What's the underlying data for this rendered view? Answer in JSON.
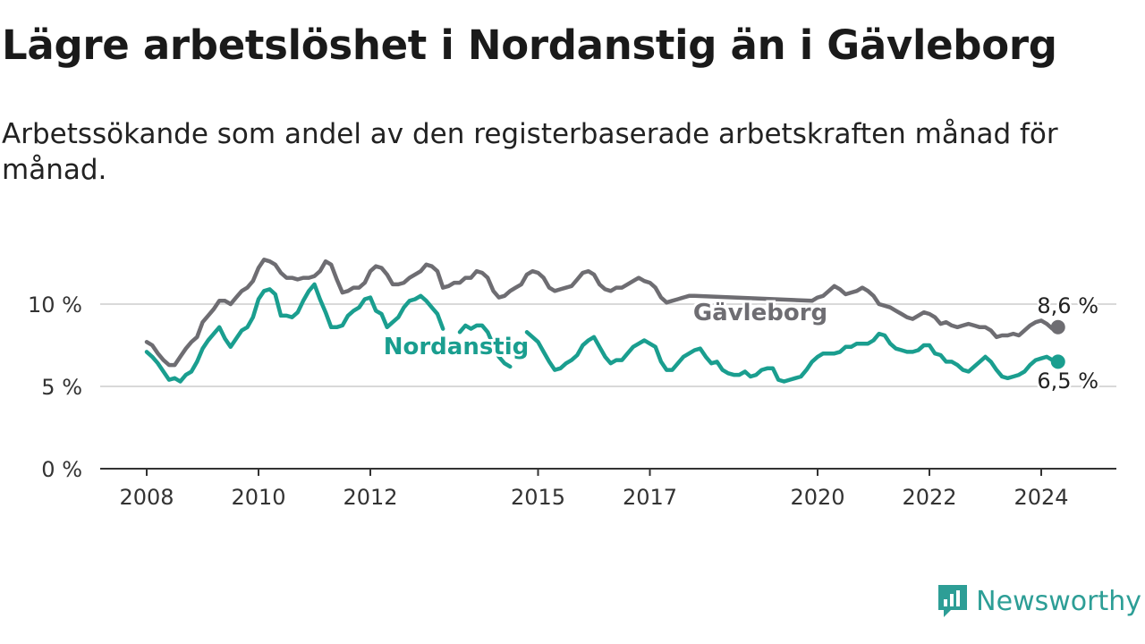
{
  "title": "Lägre arbetslöshet i Nordanstig än i Gävleborg",
  "subtitle": "Arbetssökande som andel av den registerbaserade arbetskraften månad för månad.",
  "brand": "Newsworthy",
  "colors": {
    "gavleborg": "#6e6d72",
    "nordanstig": "#1a9e8f",
    "grid": "#d9d9d9",
    "axis": "#333333",
    "brand": "#2d9e96"
  },
  "chart_data": {
    "type": "line",
    "title": "Lägre arbetslöshet i Nordanstig än i Gävleborg",
    "subtitle": "Arbetssökande som andel av den registerbaserade arbetskraften månad för månad.",
    "x_ticks": [
      2008,
      2010,
      2012,
      2015,
      2017,
      2020,
      2022,
      2024
    ],
    "y_ticks": [
      0,
      5,
      10
    ],
    "y_tick_labels": [
      "0 %",
      "5 %",
      "10 %"
    ],
    "ylim": [
      0,
      14
    ],
    "xlim": [
      2007.2,
      2025.4
    ],
    "series": [
      {
        "name": "Gävleborg",
        "end_label": "8,6 %",
        "points": [
          [
            2008.0,
            7.7
          ],
          [
            2008.1,
            7.5
          ],
          [
            2008.2,
            7.0
          ],
          [
            2008.3,
            6.6
          ],
          [
            2008.4,
            6.3
          ],
          [
            2008.5,
            6.3
          ],
          [
            2008.6,
            6.8
          ],
          [
            2008.7,
            7.3
          ],
          [
            2008.8,
            7.7
          ],
          [
            2008.9,
            8.0
          ],
          [
            2009.0,
            8.9
          ],
          [
            2009.1,
            9.3
          ],
          [
            2009.2,
            9.7
          ],
          [
            2009.3,
            10.2
          ],
          [
            2009.4,
            10.2
          ],
          [
            2009.5,
            10.0
          ],
          [
            2009.6,
            10.4
          ],
          [
            2009.7,
            10.8
          ],
          [
            2009.8,
            11.0
          ],
          [
            2009.9,
            11.4
          ],
          [
            2010.0,
            12.2
          ],
          [
            2010.1,
            12.7
          ],
          [
            2010.2,
            12.6
          ],
          [
            2010.3,
            12.4
          ],
          [
            2010.4,
            11.9
          ],
          [
            2010.5,
            11.6
          ],
          [
            2010.6,
            11.6
          ],
          [
            2010.7,
            11.5
          ],
          [
            2010.8,
            11.6
          ],
          [
            2010.9,
            11.6
          ],
          [
            2011.0,
            11.7
          ],
          [
            2011.1,
            12.0
          ],
          [
            2011.2,
            12.6
          ],
          [
            2011.3,
            12.4
          ],
          [
            2011.4,
            11.5
          ],
          [
            2011.5,
            10.7
          ],
          [
            2011.6,
            10.8
          ],
          [
            2011.7,
            11.0
          ],
          [
            2011.8,
            11.0
          ],
          [
            2011.9,
            11.3
          ],
          [
            2012.0,
            12.0
          ],
          [
            2012.1,
            12.3
          ],
          [
            2012.2,
            12.2
          ],
          [
            2012.3,
            11.8
          ],
          [
            2012.4,
            11.2
          ],
          [
            2012.5,
            11.2
          ],
          [
            2012.6,
            11.3
          ],
          [
            2012.7,
            11.6
          ],
          [
            2012.8,
            11.8
          ],
          [
            2012.9,
            12.0
          ],
          [
            2013.0,
            12.4
          ],
          [
            2013.1,
            12.3
          ],
          [
            2013.2,
            12.0
          ],
          [
            2013.3,
            11.0
          ],
          [
            2013.4,
            11.1
          ],
          [
            2013.5,
            11.3
          ],
          [
            2013.6,
            11.3
          ],
          [
            2013.7,
            11.6
          ],
          [
            2013.8,
            11.6
          ],
          [
            2013.9,
            12.0
          ],
          [
            2014.0,
            11.9
          ],
          [
            2014.1,
            11.6
          ],
          [
            2014.2,
            10.8
          ],
          [
            2014.3,
            10.4
          ],
          [
            2014.4,
            10.5
          ],
          [
            2014.5,
            10.8
          ],
          [
            2014.6,
            11.0
          ],
          [
            2014.7,
            11.2
          ],
          [
            2014.8,
            11.8
          ],
          [
            2014.9,
            12.0
          ],
          [
            2015.0,
            11.9
          ],
          [
            2015.1,
            11.6
          ],
          [
            2015.2,
            11.0
          ],
          [
            2015.3,
            10.8
          ],
          [
            2015.4,
            10.9
          ],
          [
            2015.5,
            11.0
          ],
          [
            2015.6,
            11.1
          ],
          [
            2015.7,
            11.5
          ],
          [
            2015.8,
            11.9
          ],
          [
            2015.9,
            12.0
          ],
          [
            2016.0,
            11.8
          ],
          [
            2016.1,
            11.2
          ],
          [
            2016.2,
            10.9
          ],
          [
            2016.3,
            10.8
          ],
          [
            2016.4,
            11.0
          ],
          [
            2016.5,
            11.0
          ],
          [
            2016.6,
            11.2
          ],
          [
            2016.7,
            11.4
          ],
          [
            2016.8,
            11.6
          ],
          [
            2016.9,
            11.4
          ],
          [
            2017.0,
            11.3
          ],
          [
            2017.1,
            11.0
          ],
          [
            2017.2,
            10.4
          ],
          [
            2017.3,
            10.1
          ],
          [
            2017.4,
            10.2
          ],
          [
            2017.5,
            10.3
          ],
          [
            2017.6,
            10.4
          ],
          [
            2017.7,
            10.5
          ],
          [
            2017.8,
            10.5
          ],
          [
            2019.9,
            10.2
          ],
          [
            2020.0,
            10.4
          ],
          [
            2020.1,
            10.5
          ],
          [
            2020.2,
            10.8
          ],
          [
            2020.3,
            11.1
          ],
          [
            2020.4,
            10.9
          ],
          [
            2020.5,
            10.6
          ],
          [
            2020.6,
            10.7
          ],
          [
            2020.7,
            10.8
          ],
          [
            2020.8,
            11.0
          ],
          [
            2020.9,
            10.8
          ],
          [
            2021.0,
            10.5
          ],
          [
            2021.1,
            10.0
          ],
          [
            2021.2,
            9.9
          ],
          [
            2021.3,
            9.8
          ],
          [
            2021.4,
            9.6
          ],
          [
            2021.5,
            9.4
          ],
          [
            2021.6,
            9.2
          ],
          [
            2021.7,
            9.1
          ],
          [
            2021.8,
            9.3
          ],
          [
            2021.9,
            9.5
          ],
          [
            2022.0,
            9.4
          ],
          [
            2022.1,
            9.2
          ],
          [
            2022.2,
            8.8
          ],
          [
            2022.3,
            8.9
          ],
          [
            2022.4,
            8.7
          ],
          [
            2022.5,
            8.6
          ],
          [
            2022.6,
            8.7
          ],
          [
            2022.7,
            8.8
          ],
          [
            2022.8,
            8.7
          ],
          [
            2022.9,
            8.6
          ],
          [
            2023.0,
            8.6
          ],
          [
            2023.1,
            8.4
          ],
          [
            2023.2,
            8.0
          ],
          [
            2023.3,
            8.1
          ],
          [
            2023.4,
            8.1
          ],
          [
            2023.5,
            8.2
          ],
          [
            2023.6,
            8.1
          ],
          [
            2023.7,
            8.4
          ],
          [
            2023.8,
            8.7
          ],
          [
            2023.9,
            8.9
          ],
          [
            2024.0,
            9.0
          ],
          [
            2024.1,
            8.8
          ],
          [
            2024.2,
            8.5
          ],
          [
            2024.3,
            8.6
          ]
        ]
      },
      {
        "name": "Nordanstig",
        "end_label": "6,5 %",
        "points": [
          [
            2008.0,
            7.1
          ],
          [
            2008.1,
            6.8
          ],
          [
            2008.2,
            6.4
          ],
          [
            2008.3,
            5.9
          ],
          [
            2008.4,
            5.4
          ],
          [
            2008.5,
            5.5
          ],
          [
            2008.6,
            5.3
          ],
          [
            2008.7,
            5.7
          ],
          [
            2008.8,
            5.9
          ],
          [
            2008.9,
            6.5
          ],
          [
            2009.0,
            7.3
          ],
          [
            2009.1,
            7.8
          ],
          [
            2009.2,
            8.2
          ],
          [
            2009.3,
            8.6
          ],
          [
            2009.4,
            7.9
          ],
          [
            2009.5,
            7.4
          ],
          [
            2009.6,
            7.9
          ],
          [
            2009.7,
            8.4
          ],
          [
            2009.8,
            8.6
          ],
          [
            2009.9,
            9.2
          ],
          [
            2010.0,
            10.3
          ],
          [
            2010.1,
            10.8
          ],
          [
            2010.2,
            10.9
          ],
          [
            2010.3,
            10.6
          ],
          [
            2010.4,
            9.3
          ],
          [
            2010.5,
            9.3
          ],
          [
            2010.6,
            9.2
          ],
          [
            2010.7,
            9.5
          ],
          [
            2010.8,
            10.2
          ],
          [
            2010.9,
            10.8
          ],
          [
            2011.0,
            11.2
          ],
          [
            2011.1,
            10.3
          ],
          [
            2011.2,
            9.5
          ],
          [
            2011.3,
            8.6
          ],
          [
            2011.4,
            8.6
          ],
          [
            2011.5,
            8.7
          ],
          [
            2011.6,
            9.3
          ],
          [
            2011.7,
            9.6
          ],
          [
            2011.8,
            9.8
          ],
          [
            2011.9,
            10.3
          ],
          [
            2012.0,
            10.4
          ],
          [
            2012.1,
            9.6
          ],
          [
            2012.2,
            9.4
          ],
          [
            2012.3,
            8.6
          ],
          [
            2012.4,
            8.9
          ],
          [
            2012.5,
            9.2
          ],
          [
            2012.6,
            9.8
          ],
          [
            2012.7,
            10.2
          ],
          [
            2012.8,
            10.3
          ],
          [
            2012.9,
            10.5
          ],
          [
            2013.0,
            10.2
          ],
          [
            2013.1,
            9.8
          ],
          [
            2013.2,
            9.4
          ],
          [
            2013.3,
            8.5
          ],
          [
            null,
            null
          ],
          [
            2013.6,
            8.3
          ],
          [
            2013.7,
            8.7
          ],
          [
            2013.8,
            8.5
          ],
          [
            2013.9,
            8.7
          ],
          [
            2014.0,
            8.7
          ],
          [
            2014.1,
            8.3
          ],
          [
            2014.2,
            7.5
          ],
          [
            2014.3,
            6.8
          ],
          [
            2014.4,
            6.4
          ],
          [
            2014.5,
            6.2
          ],
          [
            null,
            null
          ],
          [
            2014.8,
            8.3
          ],
          [
            2014.9,
            8.0
          ],
          [
            2015.0,
            7.7
          ],
          [
            2015.1,
            7.1
          ],
          [
            2015.2,
            6.5
          ],
          [
            2015.3,
            6.0
          ],
          [
            2015.4,
            6.1
          ],
          [
            2015.5,
            6.4
          ],
          [
            2015.6,
            6.6
          ],
          [
            2015.7,
            6.9
          ],
          [
            2015.8,
            7.5
          ],
          [
            2015.9,
            7.8
          ],
          [
            2016.0,
            8.0
          ],
          [
            2016.1,
            7.4
          ],
          [
            2016.2,
            6.8
          ],
          [
            2016.3,
            6.4
          ],
          [
            2016.4,
            6.6
          ],
          [
            2016.5,
            6.6
          ],
          [
            2016.6,
            7.0
          ],
          [
            2016.7,
            7.4
          ],
          [
            2016.8,
            7.6
          ],
          [
            2016.9,
            7.8
          ],
          [
            2017.0,
            7.6
          ],
          [
            2017.1,
            7.4
          ],
          [
            2017.2,
            6.5
          ],
          [
            2017.3,
            6.0
          ],
          [
            2017.4,
            6.0
          ],
          [
            2017.5,
            6.4
          ],
          [
            2017.6,
            6.8
          ],
          [
            2017.7,
            7.0
          ],
          [
            2017.8,
            7.2
          ],
          [
            2017.9,
            7.3
          ],
          [
            2018.0,
            6.8
          ],
          [
            2018.1,
            6.4
          ],
          [
            2018.2,
            6.5
          ],
          [
            2018.3,
            6.0
          ],
          [
            2018.4,
            5.8
          ],
          [
            2018.5,
            5.7
          ],
          [
            2018.6,
            5.7
          ],
          [
            2018.7,
            5.9
          ],
          [
            2018.8,
            5.6
          ],
          [
            2018.9,
            5.7
          ],
          [
            2019.0,
            6.0
          ],
          [
            2019.1,
            6.1
          ],
          [
            2019.2,
            6.1
          ],
          [
            2019.3,
            5.4
          ],
          [
            2019.4,
            5.3
          ],
          [
            2019.5,
            5.4
          ],
          [
            2019.6,
            5.5
          ],
          [
            2019.7,
            5.6
          ],
          [
            2019.8,
            6.0
          ],
          [
            2019.9,
            6.5
          ],
          [
            2020.0,
            6.8
          ],
          [
            2020.1,
            7.0
          ],
          [
            2020.2,
            7.0
          ],
          [
            2020.3,
            7.0
          ],
          [
            2020.4,
            7.1
          ],
          [
            2020.5,
            7.4
          ],
          [
            2020.6,
            7.4
          ],
          [
            2020.7,
            7.6
          ],
          [
            2020.8,
            7.6
          ],
          [
            2020.9,
            7.6
          ],
          [
            2021.0,
            7.8
          ],
          [
            2021.1,
            8.2
          ],
          [
            2021.2,
            8.1
          ],
          [
            2021.3,
            7.6
          ],
          [
            2021.4,
            7.3
          ],
          [
            2021.5,
            7.2
          ],
          [
            2021.6,
            7.1
          ],
          [
            2021.7,
            7.1
          ],
          [
            2021.8,
            7.2
          ],
          [
            2021.9,
            7.5
          ],
          [
            2022.0,
            7.5
          ],
          [
            2022.1,
            7.0
          ],
          [
            2022.2,
            6.9
          ],
          [
            2022.3,
            6.5
          ],
          [
            2022.4,
            6.5
          ],
          [
            2022.5,
            6.3
          ],
          [
            2022.6,
            6.0
          ],
          [
            2022.7,
            5.9
          ],
          [
            2022.8,
            6.2
          ],
          [
            2022.9,
            6.5
          ],
          [
            2023.0,
            6.8
          ],
          [
            2023.1,
            6.5
          ],
          [
            2023.2,
            6.0
          ],
          [
            2023.3,
            5.6
          ],
          [
            2023.4,
            5.5
          ],
          [
            2023.5,
            5.6
          ],
          [
            2023.6,
            5.7
          ],
          [
            2023.7,
            5.9
          ],
          [
            2023.8,
            6.3
          ],
          [
            2023.9,
            6.6
          ],
          [
            2024.0,
            6.7
          ],
          [
            2024.1,
            6.8
          ],
          [
            2024.2,
            6.6
          ],
          [
            2024.3,
            6.5
          ]
        ]
      }
    ]
  }
}
